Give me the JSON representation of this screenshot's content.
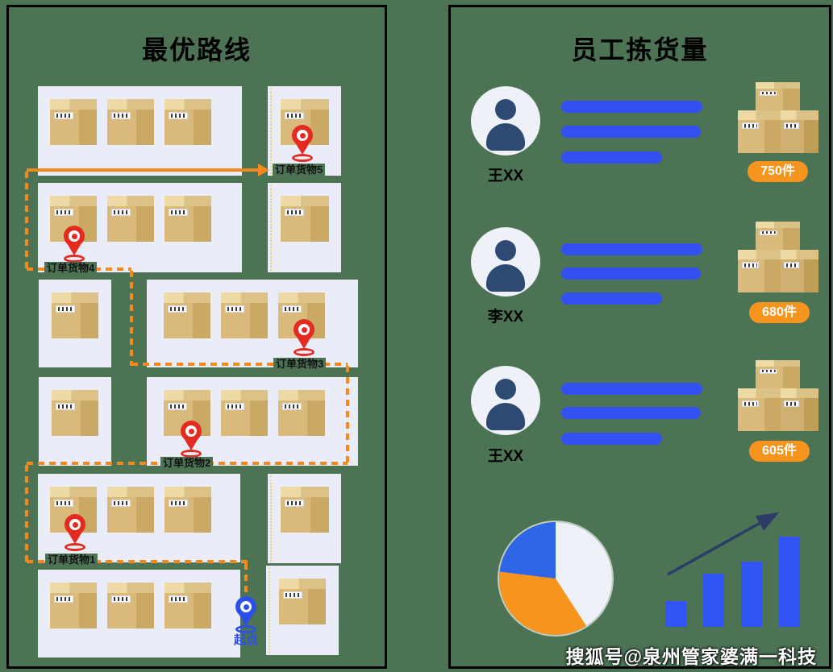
{
  "page": {
    "background_color": "#4d7355",
    "watermark": "搜狐号@泉州管家婆满一科技"
  },
  "left_panel": {
    "title": "最优路线",
    "start_label": "起点",
    "route_color": "#f6891e",
    "stops": [
      {
        "label": "订单货物1"
      },
      {
        "label": "订单货物2"
      },
      {
        "label": "订单货物3"
      },
      {
        "label": "订单货物4"
      },
      {
        "label": "订单货物5"
      }
    ]
  },
  "right_panel": {
    "title": "员工拣货量",
    "workers": [
      {
        "name": "王XX",
        "amount": "750件"
      },
      {
        "name": "李XX",
        "amount": "680件"
      },
      {
        "name": "王XX",
        "amount": "605件"
      }
    ],
    "skeleton_bar_widths": [
      175,
      173,
      125
    ],
    "pie": {
      "slices": [
        {
          "color": "#eef1f8",
          "deg": 147
        },
        {
          "color": "#f7941d",
          "deg": 130
        },
        {
          "color": "#2e66e7",
          "deg": 83
        }
      ]
    },
    "trend_bars": {
      "heights": [
        32,
        66,
        81,
        112
      ],
      "color": "#3155f4"
    }
  },
  "chart_data": [
    {
      "type": "pie",
      "values_percent": [
        40.8,
        36.1,
        23.1
      ],
      "slice_colors": [
        "#eef1f8",
        "#f7941d",
        "#2e66e7"
      ],
      "title": "",
      "legend": false
    },
    {
      "type": "bar",
      "values_relative": [
        32,
        66,
        81,
        112
      ],
      "bar_color": "#3155f4",
      "annotation": "ascending trend arrow",
      "title": "",
      "legend": false
    }
  ]
}
